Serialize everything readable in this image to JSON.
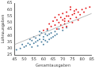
{
  "chart_data": {
    "type": "scatter",
    "x_label": "Gesamtausgaben",
    "y_label": "Lohnausgaben",
    "xlim": [
      45,
      85
    ],
    "xticks": [
      45,
      50,
      55,
      60,
      65,
      70,
      75,
      80,
      85
    ],
    "ylim": [
      25,
      65
    ],
    "yticks": [
      25,
      30,
      35,
      40,
      45,
      50,
      55,
      60,
      65
    ],
    "grid": false,
    "series": [
      {
        "color": "#e41a1c",
        "marker": "circle",
        "x": [
          70,
          72,
          68,
          75,
          66,
          74,
          78,
          71,
          69,
          73,
          76,
          67,
          80,
          64,
          72,
          70,
          77,
          65,
          79,
          74,
          62,
          71,
          68,
          75,
          82,
          73,
          69,
          76,
          66,
          78,
          70,
          63,
          81,
          72,
          67,
          74,
          60,
          84,
          77,
          71
        ],
        "y": [
          52,
          55,
          50,
          56,
          48,
          53,
          58,
          49,
          54,
          51,
          57,
          52,
          60,
          47,
          58,
          46,
          54,
          51,
          56,
          60,
          45,
          53,
          56,
          50,
          61,
          55,
          48,
          59,
          54,
          52,
          57,
          49,
          58,
          47,
          45,
          62,
          44,
          62,
          60,
          51
        ]
      },
      {
        "color": "#4a7fa0",
        "marker": "circle",
        "x": [
          58,
          60,
          55,
          62,
          57,
          64,
          53,
          59,
          61,
          56,
          63,
          50,
          66,
          58,
          54,
          60,
          65,
          52,
          62,
          57,
          67,
          48,
          59,
          61,
          55,
          64,
          51,
          68,
          56,
          63,
          46,
          60,
          70,
          54,
          58,
          66,
          53,
          62,
          49,
          72
        ],
        "y": [
          37,
          39,
          34,
          40,
          36,
          42,
          33,
          35,
          41,
          38,
          37,
          31,
          43,
          40,
          36,
          33,
          39,
          34,
          44,
          32,
          41,
          30,
          42,
          36,
          39,
          38,
          32,
          45,
          35,
          41,
          29,
          37,
          44,
          31,
          43,
          40,
          37,
          35,
          33,
          46
        ]
      },
      {
        "type": "line",
        "color": "#aaaaaa",
        "x": [
          45,
          85
        ],
        "y": [
          33,
          57
        ]
      }
    ]
  }
}
